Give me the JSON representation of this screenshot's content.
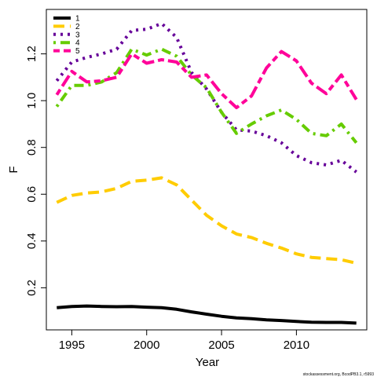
{
  "chart_data": {
    "type": "line",
    "title": "",
    "xlabel": "Year",
    "ylabel": "F",
    "xlim": [
      1993.3,
      2014.7
    ],
    "ylim": [
      0.02,
      1.39
    ],
    "x_ticks": [
      1995,
      2000,
      2005,
      2010
    ],
    "x_tick_labels": [
      "1995",
      "2000",
      "2005",
      "2010"
    ],
    "y_ticks": [
      0.2,
      0.4,
      0.6,
      0.8,
      1.0,
      1.2
    ],
    "y_tick_labels": [
      "0.2",
      "0.4",
      "0.6",
      "0.8",
      "1.0",
      "1.2"
    ],
    "legend_position": "top-left",
    "x": [
      1994,
      1995,
      1996,
      1997,
      1998,
      1999,
      2000,
      2001,
      2002,
      2003,
      2004,
      2005,
      2006,
      2007,
      2008,
      2009,
      2010,
      2011,
      2012,
      2013,
      2014
    ],
    "series": [
      {
        "name": "1",
        "color": "#000000",
        "dash": "solid",
        "values": [
          0.115,
          0.12,
          0.122,
          0.12,
          0.119,
          0.12,
          0.117,
          0.115,
          0.108,
          0.097,
          0.087,
          0.078,
          0.071,
          0.068,
          0.063,
          0.06,
          0.056,
          0.053,
          0.052,
          0.052,
          0.049
        ]
      },
      {
        "name": "2",
        "color": "#ffcc00",
        "dash": "long",
        "values": [
          0.565,
          0.595,
          0.605,
          0.61,
          0.625,
          0.655,
          0.66,
          0.67,
          0.64,
          0.575,
          0.51,
          0.465,
          0.43,
          0.415,
          0.39,
          0.37,
          0.345,
          0.33,
          0.325,
          0.32,
          0.305
        ]
      },
      {
        "name": "3",
        "color": "#660099",
        "dash": "dot",
        "values": [
          1.085,
          1.165,
          1.185,
          1.2,
          1.22,
          1.3,
          1.305,
          1.33,
          1.27,
          1.12,
          1.05,
          0.95,
          0.875,
          0.87,
          0.85,
          0.82,
          0.765,
          0.735,
          0.725,
          0.745,
          0.695
        ]
      },
      {
        "name": "4",
        "color": "#66cc00",
        "dash": "dotdash",
        "values": [
          0.975,
          1.065,
          1.065,
          1.08,
          1.12,
          1.22,
          1.195,
          1.22,
          1.19,
          1.11,
          1.055,
          0.95,
          0.86,
          0.9,
          0.935,
          0.96,
          0.92,
          0.86,
          0.85,
          0.9,
          0.82
        ]
      },
      {
        "name": "5",
        "color": "#ff0099",
        "dash": "twodash",
        "values": [
          1.025,
          1.125,
          1.08,
          1.085,
          1.1,
          1.2,
          1.16,
          1.175,
          1.165,
          1.1,
          1.11,
          1.03,
          0.97,
          1.02,
          1.14,
          1.21,
          1.17,
          1.075,
          1.03,
          1.11,
          1.005
        ]
      }
    ]
  },
  "footer": "stockassessment.org, BcodPB3.1, r5993"
}
